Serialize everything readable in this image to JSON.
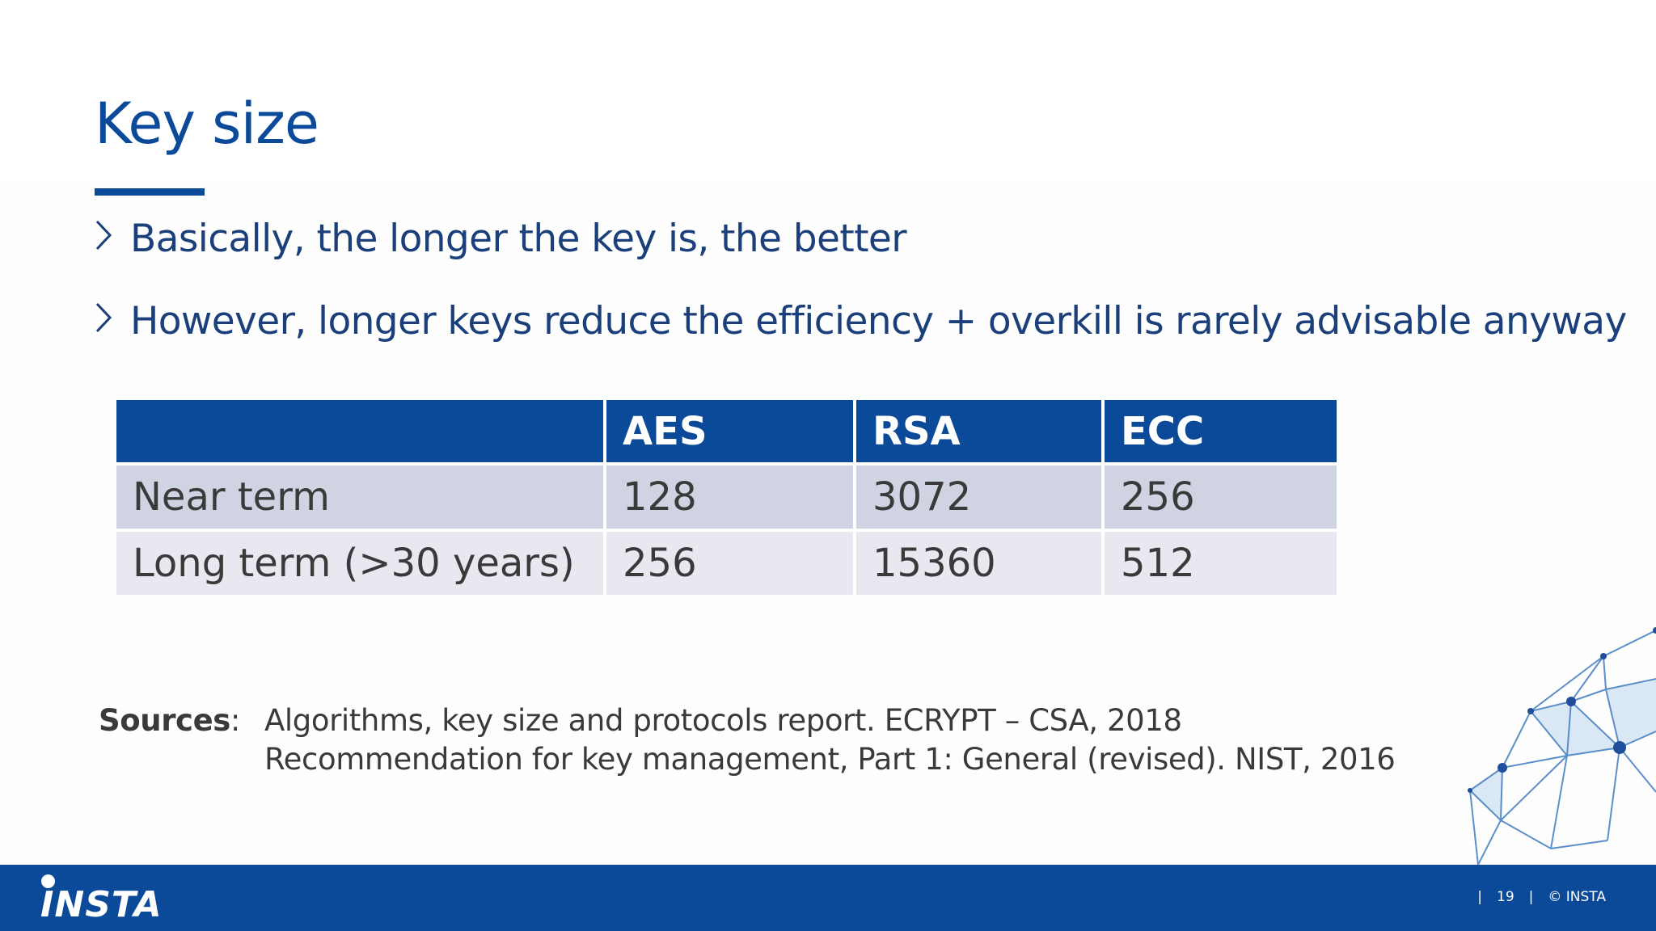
{
  "slide": {
    "title": "Key size",
    "bullets": [
      "Basically, the longer the key is, the better",
      "However, longer keys reduce the efficiency + overkill is rarely advisable anyway"
    ]
  },
  "table": {
    "headers": [
      "",
      "AES",
      "RSA",
      "ECC"
    ],
    "rows": [
      [
        "Near term",
        "128",
        "3072",
        "256"
      ],
      [
        "Long term (>30 years)",
        "256",
        "15360",
        "512"
      ]
    ]
  },
  "sources": {
    "label": "Sources",
    "separator": ":",
    "items": [
      "Algorithms, key size and protocols report. ECRYPT – CSA, 2018",
      "Recommendation for key management, Part 1: General (revised). NIST, 2016"
    ]
  },
  "footer": {
    "logo_text": "INSTA",
    "divider": "|",
    "page_number": "19",
    "copyright": "© INSTA"
  },
  "colors": {
    "brand_blue": "#0b4a99",
    "row_dark": "#cfd3e2",
    "row_light": "#e7e8f0"
  },
  "icons": {
    "bullet": "chevron-right-icon",
    "decoration": "geodesic-globe"
  }
}
